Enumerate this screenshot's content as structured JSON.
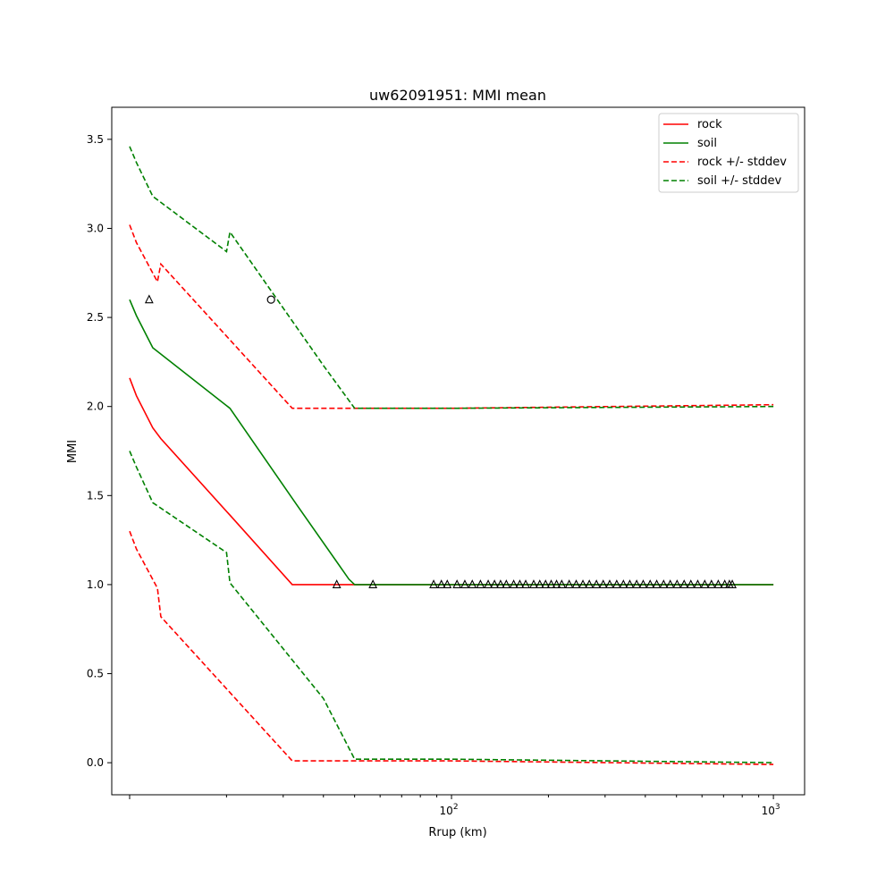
{
  "chart_data": {
    "type": "line",
    "title": "uw62091951: MMI mean",
    "xlabel": "Rrup (km)",
    "ylabel": "MMI",
    "xscale": "log",
    "xlim": [
      8.8,
      1250
    ],
    "ylim": [
      -0.18,
      3.68
    ],
    "grid": false,
    "legend_position": "top-right",
    "x_ticks": [
      {
        "value": 100,
        "base": "10",
        "exp": "2"
      },
      {
        "value": 1000,
        "base": "10",
        "exp": "3"
      }
    ],
    "y_ticks": [
      {
        "value": 0.0,
        "label": "0.0"
      },
      {
        "value": 0.5,
        "label": "0.5"
      },
      {
        "value": 1.0,
        "label": "1.0"
      },
      {
        "value": 1.5,
        "label": "1.5"
      },
      {
        "value": 2.0,
        "label": "2.0"
      },
      {
        "value": 2.5,
        "label": "2.5"
      },
      {
        "value": 3.0,
        "label": "3.0"
      },
      {
        "value": 3.5,
        "label": "3.5"
      }
    ],
    "series": [
      {
        "name": "rock",
        "color": "#ff0000",
        "dash": "solid",
        "points": [
          [
            10,
            2.16
          ],
          [
            10.5,
            2.06
          ],
          [
            11.8,
            1.88
          ],
          [
            12.5,
            1.82
          ],
          [
            20.5,
            1.39
          ],
          [
            32,
            1.0
          ],
          [
            1000,
            1.0
          ]
        ]
      },
      {
        "name": "soil",
        "color": "#008000",
        "dash": "solid",
        "points": [
          [
            10,
            2.6
          ],
          [
            10.5,
            2.51
          ],
          [
            11.8,
            2.33
          ],
          [
            20.5,
            1.99
          ],
          [
            33,
            1.45
          ],
          [
            48,
            1.03
          ],
          [
            50,
            1.0
          ],
          [
            1000,
            1.0
          ]
        ]
      },
      {
        "name": "rock +/- stddev",
        "color": "#ff0000",
        "dash": "dashed",
        "points": [
          [
            10,
            3.02
          ],
          [
            10.5,
            2.92
          ],
          [
            12.2,
            2.7
          ],
          [
            12.5,
            2.8
          ],
          [
            32,
            1.99
          ],
          [
            100,
            1.99
          ],
          [
            1000,
            2.01
          ]
        ]
      },
      {
        "name": "",
        "color": "#ff0000",
        "dash": "dashed",
        "points": [
          [
            10,
            1.3
          ],
          [
            10.5,
            1.2
          ],
          [
            12.2,
            0.98
          ],
          [
            12.5,
            0.82
          ],
          [
            32,
            0.01
          ],
          [
            100,
            0.01
          ],
          [
            1000,
            -0.01
          ]
        ]
      },
      {
        "name": "soil +/- stddev",
        "color": "#008000",
        "dash": "dashed",
        "points": [
          [
            10,
            3.46
          ],
          [
            10.5,
            3.37
          ],
          [
            11.8,
            3.18
          ],
          [
            20,
            2.87
          ],
          [
            20.5,
            2.98
          ],
          [
            40,
            2.23
          ],
          [
            50,
            1.99
          ],
          [
            100,
            1.99
          ],
          [
            1000,
            2.0
          ]
        ]
      },
      {
        "name": "",
        "color": "#008000",
        "dash": "dashed",
        "points": [
          [
            10,
            1.75
          ],
          [
            10.5,
            1.66
          ],
          [
            11.8,
            1.46
          ],
          [
            20,
            1.18
          ],
          [
            20.5,
            1.01
          ],
          [
            40,
            0.36
          ],
          [
            50,
            0.02
          ],
          [
            100,
            0.02
          ],
          [
            1000,
            0.0
          ]
        ]
      }
    ],
    "observations": [
      {
        "marker": "triangle",
        "points": [
          [
            11.5,
            2.6
          ],
          [
            44,
            1.0
          ],
          [
            57,
            1.0
          ],
          [
            88,
            1.0
          ],
          [
            93,
            1.0
          ],
          [
            97,
            1.0
          ],
          [
            104,
            1.0
          ],
          [
            110,
            1.0
          ],
          [
            116,
            1.0
          ],
          [
            123,
            1.0
          ],
          [
            130,
            1.0
          ],
          [
            136,
            1.0
          ],
          [
            142,
            1.0
          ],
          [
            148,
            1.0
          ],
          [
            156,
            1.0
          ],
          [
            163,
            1.0
          ],
          [
            170,
            1.0
          ],
          [
            180,
            1.0
          ],
          [
            188,
            1.0
          ],
          [
            196,
            1.0
          ],
          [
            204,
            1.0
          ],
          [
            212,
            1.0
          ],
          [
            220,
            1.0
          ],
          [
            232,
            1.0
          ],
          [
            244,
            1.0
          ],
          [
            256,
            1.0
          ],
          [
            268,
            1.0
          ],
          [
            282,
            1.0
          ],
          [
            296,
            1.0
          ],
          [
            310,
            1.0
          ],
          [
            326,
            1.0
          ],
          [
            342,
            1.0
          ],
          [
            358,
            1.0
          ],
          [
            376,
            1.0
          ],
          [
            394,
            1.0
          ],
          [
            414,
            1.0
          ],
          [
            434,
            1.0
          ],
          [
            456,
            1.0
          ],
          [
            478,
            1.0
          ],
          [
            502,
            1.0
          ],
          [
            528,
            1.0
          ],
          [
            554,
            1.0
          ],
          [
            582,
            1.0
          ],
          [
            612,
            1.0
          ],
          [
            642,
            1.0
          ],
          [
            674,
            1.0
          ],
          [
            706,
            1.0
          ],
          [
            730,
            1.0
          ],
          [
            745,
            1.0
          ]
        ]
      },
      {
        "marker": "circle",
        "points": [
          [
            27.5,
            2.6
          ]
        ]
      }
    ]
  }
}
